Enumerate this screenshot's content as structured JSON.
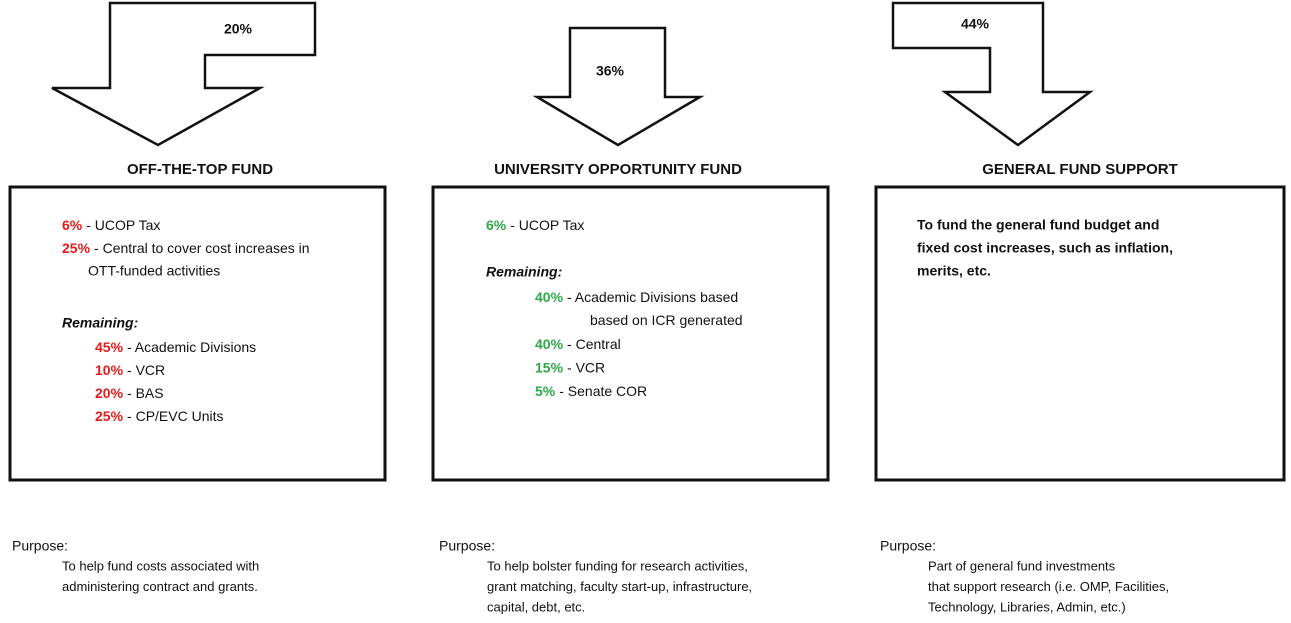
{
  "columns": [
    {
      "arrow_label": "20%",
      "title": "OFF-THE-TOP FUND",
      "items": [
        {
          "pct": "6%",
          "text": [
            "- UCOP Tax"
          ]
        },
        {
          "pct": "25%",
          "text": [
            "- Central to cover cost increases in",
            "OTT-funded activities"
          ]
        }
      ],
      "remaining_label": "Remaining:",
      "remaining": [
        {
          "pct": "45%",
          "text": [
            "- Academic Divisions"
          ]
        },
        {
          "pct": "10%",
          "text": [
            "- VCR"
          ]
        },
        {
          "pct": "20%",
          "text": [
            "- BAS"
          ]
        },
        {
          "pct": "25%",
          "text": [
            "- CP/EVC Units"
          ]
        }
      ],
      "purpose_label": "Purpose:",
      "purpose": [
        "To help fund costs associated with",
        "administering contract and grants."
      ]
    },
    {
      "arrow_label": "36%",
      "title": "UNIVERSITY OPPORTUNITY FUND",
      "items": [
        {
          "pct": "6%",
          "text": [
            "- UCOP Tax"
          ]
        }
      ],
      "remaining_label": "Remaining:",
      "remaining": [
        {
          "pct": "40%",
          "text": [
            "- Academic Divisions based",
            "based on ICR generated"
          ]
        },
        {
          "pct": "40%",
          "text": [
            "- Central"
          ]
        },
        {
          "pct": "15%",
          "text": [
            "- VCR"
          ]
        },
        {
          "pct": "5%",
          "text": [
            "- Senate COR"
          ]
        }
      ],
      "purpose_label": "Purpose:",
      "purpose": [
        "To help bolster funding for research activities,",
        "grant matching, faculty start-up, infrastructure,",
        "capital, debt, etc."
      ]
    },
    {
      "arrow_label": "44%",
      "title": "GENERAL FUND SUPPORT",
      "body": [
        "To fund the general fund budget and",
        "fixed cost increases, such as inflation,",
        "merits, etc."
      ],
      "purpose_label": "Purpose:",
      "purpose": [
        "Part of general fund investments",
        "that support research (i.e. OMP, Facilities,",
        "Technology, Libraries, Admin, etc.)"
      ]
    }
  ]
}
